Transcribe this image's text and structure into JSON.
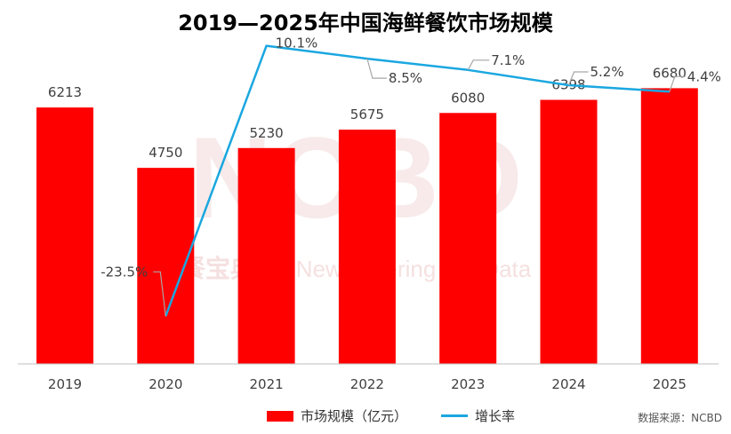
{
  "title": "2019—2025年中国海鲜餐饮市场规模",
  "source": "数据来源：NCBD",
  "watermark": {
    "logo": "NCBD",
    "cn": "餐宝典",
    "en": "New Catering Big Data"
  },
  "legend": {
    "bar_label": "市场规模（亿元）",
    "line_label": "增长率"
  },
  "colors": {
    "bar": "#ff0000",
    "line": "#1aa7e0"
  },
  "chart_data": {
    "type": "bar",
    "title": "2019—2025年中国海鲜餐饮市场规模",
    "categories": [
      "2019",
      "2020",
      "2021",
      "2022",
      "2023",
      "2024",
      "2025"
    ],
    "series": [
      {
        "name": "市场规模（亿元）",
        "type": "bar",
        "values": [
          6213,
          4750,
          5230,
          5675,
          6080,
          6398,
          6680
        ],
        "labels": [
          "6213",
          "4750",
          "5230",
          "5675",
          "6080",
          "6398",
          "6680"
        ]
      },
      {
        "name": "增长率",
        "type": "line",
        "values": [
          -23.5,
          10.1,
          8.5,
          7.1,
          5.2,
          4.4
        ],
        "x": [
          "2020",
          "2021",
          "2022",
          "2023",
          "2024",
          "2025"
        ],
        "labels": [
          "-23.5%",
          "10.1%",
          "8.5%",
          "7.1%",
          "5.2%",
          "4.4%"
        ]
      }
    ],
    "legend_position": "bottom",
    "grid": false
  }
}
